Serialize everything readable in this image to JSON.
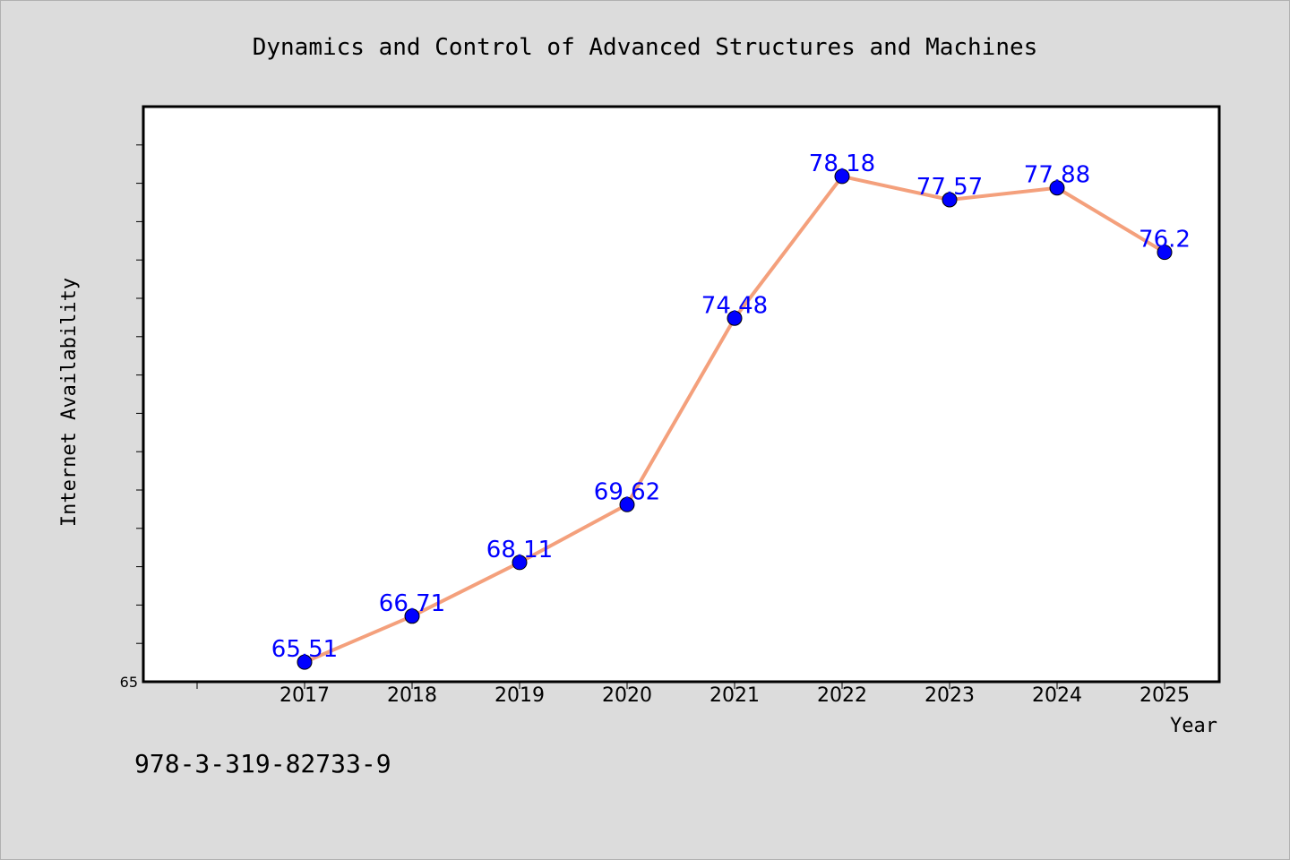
{
  "chart_data": {
    "type": "line",
    "title": "Dynamics and Control of Advanced Structures and Machines",
    "xlabel": "Year",
    "ylabel": "Internet Availability",
    "x": [
      "2017",
      "2018",
      "2019",
      "2020",
      "2021",
      "2022",
      "2023",
      "2024",
      "2025"
    ],
    "series": [
      {
        "values": [
          65.51,
          66.71,
          68.11,
          69.62,
          74.48,
          78.18,
          77.57,
          77.88,
          76.2
        ]
      }
    ],
    "data_labels": [
      "65.51",
      "66.71",
      "68.11",
      "69.62",
      "74.48",
      "78.18",
      "77.57",
      "77.88",
      "76.2"
    ],
    "y_tick_labels": [
      "65"
    ],
    "ylim": [
      65,
      80
    ],
    "grid": false,
    "legend": "none",
    "colors": {
      "line": "#f4a07c",
      "marker": "#0000ff",
      "data_label": "#0000ff",
      "figure_background": "#dcdcdc",
      "plot_background": "#ffffff"
    }
  },
  "footer": {
    "isbn": "978-3-319-82733-9"
  }
}
